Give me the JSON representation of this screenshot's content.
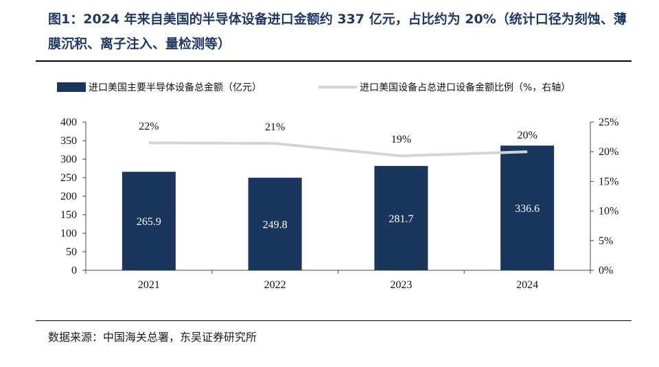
{
  "title": "图1：2024 年来自美国的半导体设备进口金额约 337 亿元，占比约为 20%（统计口径为刻蚀、薄膜沉积、离子注入、量检测等）",
  "source": "数据来源：中国海关总署，东吴证券研究所",
  "colors": {
    "bar": "#1b365d",
    "line": "#d4d4d4",
    "title": "#1f3864"
  },
  "chart_data": {
    "type": "bar",
    "categories": [
      "2021",
      "2022",
      "2023",
      "2024"
    ],
    "series": [
      {
        "name": "进口美国主要半导体设备总金额（亿元）",
        "type": "bar",
        "axis": "left",
        "values": [
          265.9,
          249.8,
          281.7,
          336.6
        ],
        "labels": [
          "265.9",
          "249.8",
          "281.7",
          "336.6"
        ]
      },
      {
        "name": "进口美国设备占总进口设备金额比例（%，右轴）",
        "type": "line",
        "axis": "right",
        "values": [
          21.5,
          21.4,
          19.3,
          20.0
        ],
        "labels": [
          "22%",
          "21%",
          "19%",
          "20%"
        ]
      }
    ],
    "ylim": [
      0,
      400
    ],
    "yticks": [
      "0",
      "50",
      "100",
      "150",
      "200",
      "250",
      "300",
      "350",
      "400"
    ],
    "y2lim": [
      0,
      25
    ],
    "y2ticks": [
      "0%",
      "5%",
      "10%",
      "15%",
      "20%",
      "25%"
    ],
    "legend_position": "top",
    "grid": false
  }
}
